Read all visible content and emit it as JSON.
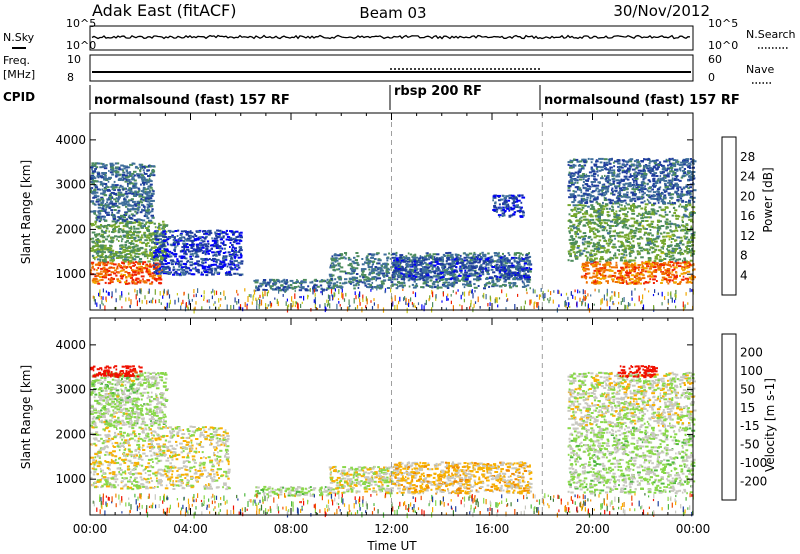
{
  "header": {
    "station": "Adak East (fitACF)",
    "beam": "Beam 03",
    "date": "30/Nov/2012"
  },
  "strip_labels": {
    "nsky": "N.Sky",
    "freq_top": "Freq.",
    "freq_unit": "[MHz]",
    "cpid": "CPID",
    "nsearch": "N.Search",
    "nave": "Nave",
    "nsky_hi": "10^5",
    "nsky_lo": "10^0",
    "freq_hi": "10",
    "freq_lo": "8",
    "nsearch_hi": "10^5",
    "nsearch_lo": "10^0",
    "nave_hi": "60",
    "nave_lo": "0"
  },
  "cpid_segments": [
    {
      "label": "normalsound (fast) 157 RF",
      "start_h": 0,
      "end_h": 12
    },
    {
      "label": "rbsp 200 RF",
      "start_h": 12,
      "end_h": 18
    },
    {
      "label": "normalsound (fast) 157 RF",
      "start_h": 18,
      "end_h": 24
    }
  ],
  "chart_data": [
    {
      "type": "heatmap",
      "quantity": "power",
      "ylabel": "Slant Range [km]",
      "xlabel": "",
      "xlim": [
        0,
        24
      ],
      "ylim": [
        200,
        4600
      ],
      "yticks": [
        1000,
        2000,
        3000,
        4000
      ],
      "colorbar": {
        "label": "Power [dB]",
        "ticks": [
          "28",
          "24",
          "20",
          "16",
          "12",
          "8",
          "4"
        ],
        "range": [
          0,
          32
        ],
        "colors": [
          "#0000f8",
          "#1e3c9e",
          "#3e6e9a",
          "#4c8c5c",
          "#76a82e",
          "#c8c81a",
          "#f0a800",
          "#f07000",
          "#f02000"
        ]
      },
      "regions": [
        {
          "t0": 0.0,
          "t1": 2.8,
          "r0": 800,
          "r1": 1300,
          "level": 28
        },
        {
          "t0": 0.0,
          "t1": 3.0,
          "r0": 1300,
          "r1": 2200,
          "level": 14
        },
        {
          "t0": 0.0,
          "t1": 2.5,
          "r0": 2200,
          "r1": 3500,
          "level": 9
        },
        {
          "t0": 2.5,
          "t1": 6.0,
          "r0": 1000,
          "r1": 2000,
          "level": 5
        },
        {
          "t0": 6.5,
          "t1": 9.5,
          "r0": 650,
          "r1": 900,
          "level": 9
        },
        {
          "t0": 9.5,
          "t1": 17.5,
          "r0": 700,
          "r1": 1500,
          "level": 10
        },
        {
          "t0": 12.0,
          "t1": 17.5,
          "r0": 900,
          "r1": 1400,
          "level": 6
        },
        {
          "t0": 16.0,
          "t1": 17.2,
          "r0": 2300,
          "r1": 2800,
          "level": 5
        },
        {
          "t0": 19.5,
          "t1": 24.0,
          "r0": 800,
          "r1": 1300,
          "level": 27
        },
        {
          "t0": 19.0,
          "t1": 24.0,
          "r0": 1300,
          "r1": 2600,
          "level": 14
        },
        {
          "t0": 19.0,
          "t1": 24.0,
          "r0": 2600,
          "r1": 3600,
          "level": 8
        }
      ]
    },
    {
      "type": "heatmap",
      "quantity": "velocity",
      "ylabel": "Slant Range [km]",
      "xlabel": "Time UT",
      "xlim": [
        0,
        24
      ],
      "ylim": [
        200,
        4600
      ],
      "yticks": [
        1000,
        2000,
        3000,
        4000
      ],
      "xticks": [
        "00:00",
        "04:00",
        "08:00",
        "12:00",
        "16:00",
        "20:00",
        "00:00"
      ],
      "colorbar": {
        "label": "Velocity [m s-1]",
        "ticks": [
          "200",
          "100",
          "50",
          "15",
          "-15",
          "-50",
          "-100",
          "-200"
        ],
        "range": [
          -250,
          250
        ],
        "colors": [
          "#f01000",
          "#f05000",
          "#f08800",
          "#f8b000",
          "#c8c8c0",
          "#88d848",
          "#50b840",
          "#3c7a30",
          "#1e40a0"
        ]
      },
      "regions": [
        {
          "t0": 0.0,
          "t1": 5.5,
          "r0": 800,
          "r1": 2200,
          "level": 0
        },
        {
          "t0": 0.0,
          "t1": 3.0,
          "r0": 2200,
          "r1": 3400,
          "level": 30
        },
        {
          "t0": 0.0,
          "t1": 2.0,
          "r0": 3300,
          "r1": 3550,
          "level": -250
        },
        {
          "t0": 6.5,
          "t1": 9.5,
          "r0": 650,
          "r1": 850,
          "level": 40
        },
        {
          "t0": 9.5,
          "t1": 12.0,
          "r0": 700,
          "r1": 1300,
          "level": 0
        },
        {
          "t0": 12.0,
          "t1": 17.5,
          "r0": 700,
          "r1": 1400,
          "level": -40
        },
        {
          "t0": 19.0,
          "t1": 24.0,
          "r0": 700,
          "r1": 2200,
          "level": 35
        },
        {
          "t0": 19.0,
          "t1": 24.0,
          "r0": 2200,
          "r1": 3400,
          "level": 10
        },
        {
          "t0": 21.0,
          "t1": 22.5,
          "r0": 3300,
          "r1": 3550,
          "level": -250
        }
      ]
    }
  ]
}
